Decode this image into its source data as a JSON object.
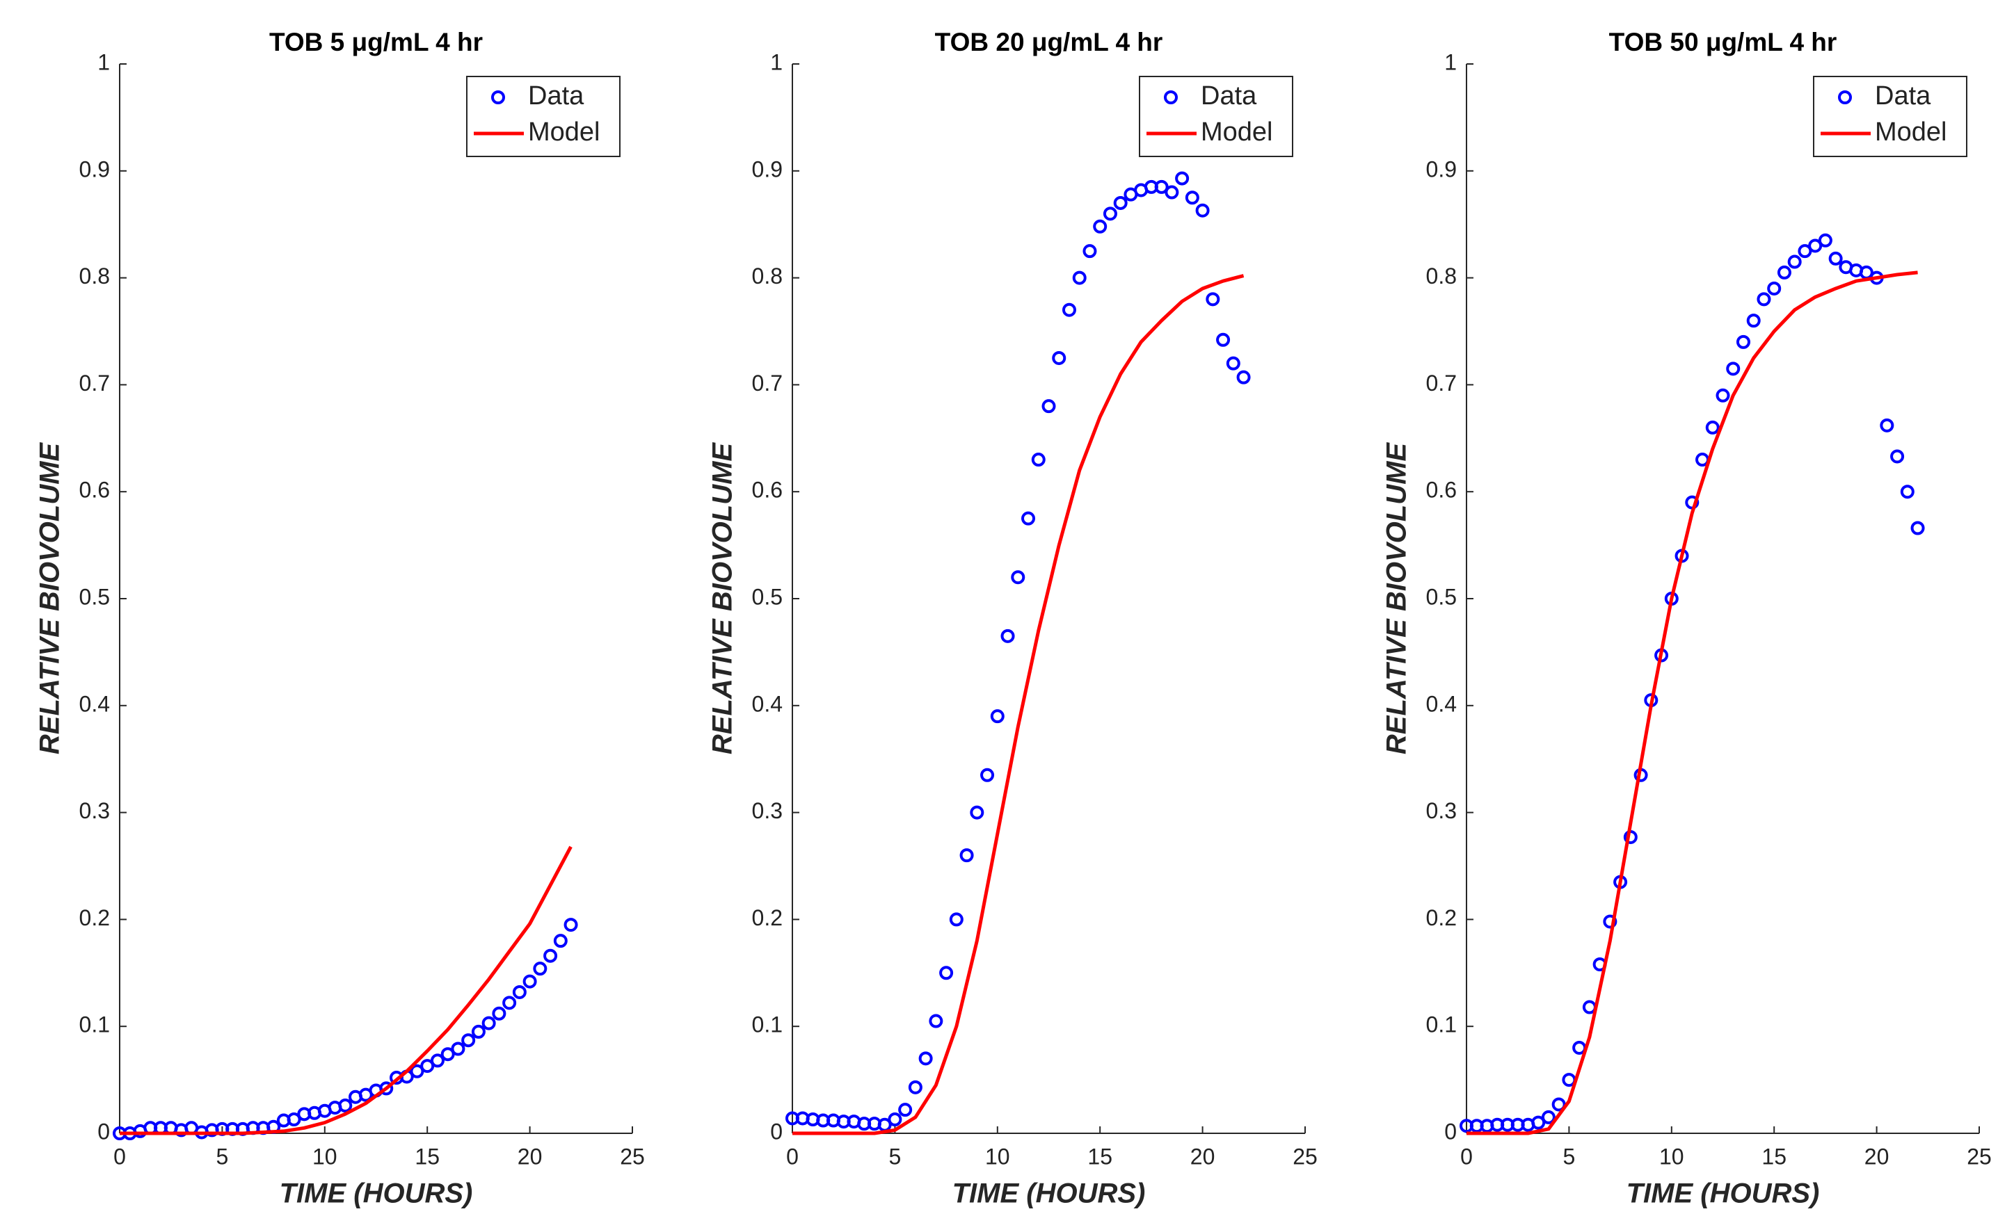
{
  "chart_data": [
    {
      "type": "line",
      "title": "TOB 5 μg/mL 4 hr",
      "xlabel": "TIME (HOURS)",
      "ylabel": "RELATIVE BIOVOLUME",
      "xlim": [
        0,
        25
      ],
      "ylim": [
        0,
        1
      ],
      "xticks": [
        0,
        5,
        10,
        15,
        20,
        25
      ],
      "yticks": [
        0,
        0.1,
        0.2,
        0.3,
        0.4,
        0.5,
        0.6,
        0.7,
        0.8,
        0.9,
        1
      ],
      "legend": "upper right",
      "series": [
        {
          "name": "Data",
          "color": "#0000ff",
          "marker": "circle",
          "x": [
            0,
            0.5,
            1,
            1.5,
            2,
            2.5,
            3,
            3.5,
            4,
            4.5,
            5,
            5.5,
            6,
            6.5,
            7,
            7.5,
            8,
            8.5,
            9,
            9.5,
            10,
            10.5,
            11,
            11.5,
            12,
            12.5,
            13,
            13.5,
            14,
            14.5,
            15,
            15.5,
            16,
            16.5,
            17,
            17.5,
            18,
            18.5,
            19,
            19.5,
            20,
            20.5,
            21,
            21.5,
            22
          ],
          "values": [
            0,
            0,
            0.002,
            0.005,
            0.005,
            0.005,
            0.003,
            0.005,
            0.001,
            0.003,
            0.004,
            0.004,
            0.004,
            0.005,
            0.005,
            0.006,
            0.012,
            0.013,
            0.018,
            0.019,
            0.021,
            0.024,
            0.026,
            0.034,
            0.036,
            0.04,
            0.042,
            0.052,
            0.053,
            0.058,
            0.063,
            0.068,
            0.074,
            0.079,
            0.087,
            0.095,
            0.103,
            0.112,
            0.122,
            0.132,
            0.142,
            0.154,
            0.166,
            0.18,
            0.195
          ]
        },
        {
          "name": "Model",
          "color": "#ff0000",
          "x": [
            0,
            1,
            2,
            3,
            4,
            5,
            6,
            7,
            8,
            9,
            10,
            11,
            12,
            13,
            14,
            15,
            16,
            17,
            18,
            19,
            20,
            21,
            22
          ],
          "values": [
            0,
            0,
            0,
            0,
            0,
            0,
            0,
            0.001,
            0.002,
            0.005,
            0.01,
            0.018,
            0.028,
            0.042,
            0.058,
            0.077,
            0.097,
            0.12,
            0.144,
            0.17,
            0.196,
            0.232,
            0.268
          ]
        }
      ]
    },
    {
      "type": "line",
      "title": "TOB 20 μg/mL 4 hr",
      "xlabel": "TIME (HOURS)",
      "ylabel": "RELATIVE BIOVOLUME",
      "xlim": [
        0,
        25
      ],
      "ylim": [
        0,
        1
      ],
      "xticks": [
        0,
        5,
        10,
        15,
        20,
        25
      ],
      "yticks": [
        0,
        0.1,
        0.2,
        0.3,
        0.4,
        0.5,
        0.6,
        0.7,
        0.8,
        0.9,
        1
      ],
      "legend": "upper right",
      "series": [
        {
          "name": "Data",
          "color": "#0000ff",
          "marker": "circle",
          "x": [
            0,
            0.5,
            1,
            1.5,
            2,
            2.5,
            3,
            3.5,
            4,
            4.5,
            5,
            5.5,
            6,
            6.5,
            7,
            7.5,
            8,
            8.5,
            9,
            9.5,
            10,
            10.5,
            11,
            11.5,
            12,
            12.5,
            13,
            13.5,
            14,
            14.5,
            15,
            15.5,
            16,
            16.5,
            17,
            17.5,
            18,
            18.5,
            19,
            19.5,
            20,
            20.5,
            21,
            21.5,
            22
          ],
          "values": [
            0.014,
            0.014,
            0.013,
            0.012,
            0.012,
            0.011,
            0.011,
            0.009,
            0.009,
            0.008,
            0.013,
            0.022,
            0.043,
            0.07,
            0.105,
            0.15,
            0.2,
            0.26,
            0.3,
            0.335,
            0.39,
            0.465,
            0.52,
            0.575,
            0.63,
            0.68,
            0.725,
            0.77,
            0.8,
            0.825,
            0.848,
            0.86,
            0.87,
            0.878,
            0.882,
            0.885,
            0.885,
            0.88,
            0.893,
            0.875,
            0.863,
            0.78,
            0.742,
            0.72,
            0.707
          ]
        },
        {
          "name": "Model",
          "color": "#ff0000",
          "x": [
            0,
            1,
            2,
            3,
            4,
            5,
            6,
            7,
            8,
            9,
            10,
            11,
            12,
            13,
            14,
            15,
            16,
            17,
            18,
            19,
            20,
            21,
            22
          ],
          "values": [
            0,
            0,
            0,
            0,
            0,
            0.003,
            0.015,
            0.045,
            0.1,
            0.18,
            0.28,
            0.38,
            0.47,
            0.55,
            0.62,
            0.67,
            0.71,
            0.74,
            0.76,
            0.778,
            0.79,
            0.797,
            0.802
          ]
        }
      ]
    },
    {
      "type": "line",
      "title": "TOB 50 μg/mL 4 hr",
      "xlabel": "TIME (HOURS)",
      "ylabel": "RELATIVE BIOVOLUME",
      "xlim": [
        0,
        25
      ],
      "ylim": [
        0,
        1
      ],
      "xticks": [
        0,
        5,
        10,
        15,
        20,
        25
      ],
      "yticks": [
        0,
        0.1,
        0.2,
        0.3,
        0.4,
        0.5,
        0.6,
        0.7,
        0.8,
        0.9,
        1
      ],
      "legend": "upper right",
      "series": [
        {
          "name": "Data",
          "color": "#0000ff",
          "marker": "circle",
          "x": [
            0,
            0.5,
            1,
            1.5,
            2,
            2.5,
            3,
            3.5,
            4,
            4.5,
            5,
            5.5,
            6,
            6.5,
            7,
            7.5,
            8,
            8.5,
            9,
            9.5,
            10,
            10.5,
            11,
            11.5,
            12,
            12.5,
            13,
            13.5,
            14,
            14.5,
            15,
            15.5,
            16,
            16.5,
            17,
            17.5,
            18,
            18.5,
            19,
            19.5,
            20,
            20.5,
            21,
            21.5,
            22
          ],
          "values": [
            0.007,
            0.007,
            0.007,
            0.008,
            0.008,
            0.008,
            0.008,
            0.01,
            0.015,
            0.027,
            0.05,
            0.08,
            0.118,
            0.158,
            0.198,
            0.235,
            0.277,
            0.335,
            0.405,
            0.447,
            0.5,
            0.54,
            0.59,
            0.63,
            0.66,
            0.69,
            0.715,
            0.74,
            0.76,
            0.78,
            0.79,
            0.805,
            0.815,
            0.825,
            0.83,
            0.835,
            0.818,
            0.81,
            0.807,
            0.805,
            0.8,
            0.662,
            0.633,
            0.6,
            0.566
          ]
        },
        {
          "name": "Model",
          "color": "#ff0000",
          "x": [
            0,
            1,
            2,
            3,
            4,
            5,
            6,
            7,
            8,
            9,
            10,
            11,
            12,
            13,
            14,
            15,
            16,
            17,
            18,
            19,
            20,
            21,
            22
          ],
          "values": [
            0,
            0,
            0,
            0,
            0.004,
            0.03,
            0.09,
            0.18,
            0.29,
            0.4,
            0.5,
            0.58,
            0.64,
            0.69,
            0.725,
            0.75,
            0.77,
            0.782,
            0.79,
            0.797,
            0.8,
            0.803,
            0.805
          ]
        }
      ]
    }
  ]
}
